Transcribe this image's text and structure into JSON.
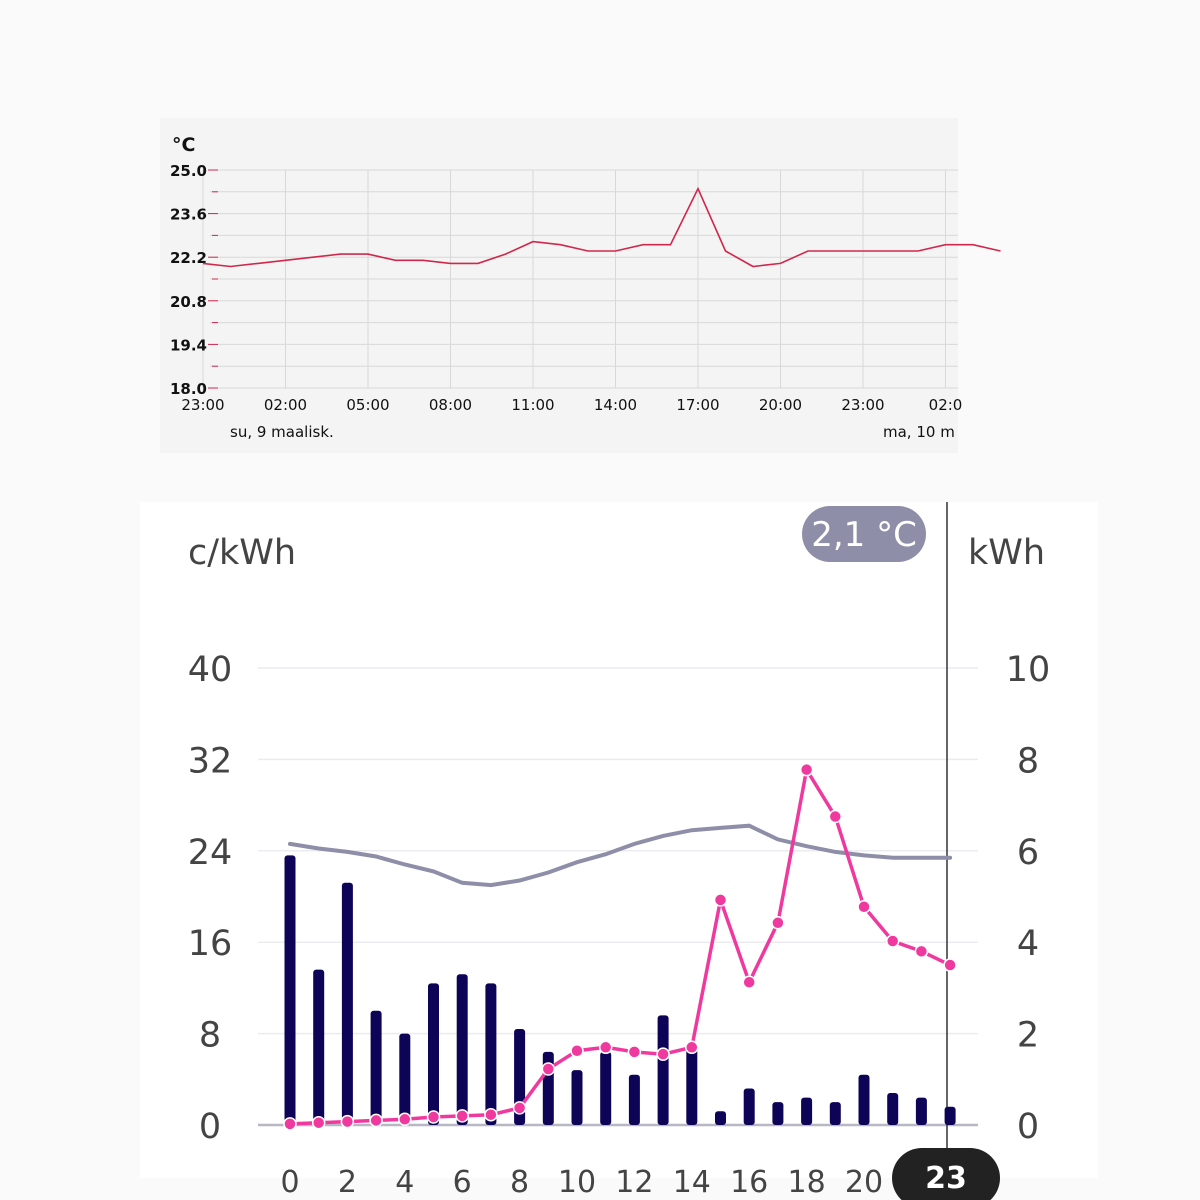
{
  "chart_data": [
    {
      "type": "line",
      "ylabel": "°C",
      "ylim": [
        18.0,
        25.0
      ],
      "yticks": [
        "25.0",
        "23.6",
        "22.2",
        "20.8",
        "19.4",
        "18.0"
      ],
      "xticks": [
        "23:00",
        "02:00",
        "05:00",
        "08:00",
        "11:00",
        "14:00",
        "17:00",
        "20:00",
        "23:00",
        "02:0"
      ],
      "date_labels": [
        "su, 9 maalisk.",
        "ma, 10 m"
      ],
      "grid": true,
      "color": "#d0284c",
      "series": [
        {
          "x": [
            0,
            1,
            2,
            3,
            4,
            5,
            6,
            7,
            8,
            9,
            10,
            11,
            12,
            13,
            14,
            15,
            16,
            17,
            18,
            19,
            20,
            21,
            22,
            23,
            24,
            25,
            26,
            27,
            28,
            29
          ],
          "values": [
            22.0,
            21.9,
            22.0,
            22.1,
            22.2,
            22.3,
            22.3,
            22.1,
            22.1,
            22.0,
            22.0,
            22.3,
            22.7,
            22.6,
            22.4,
            22.4,
            22.6,
            22.6,
            24.4,
            22.4,
            21.9,
            22.0,
            22.4,
            22.4,
            22.4,
            22.4,
            22.4,
            22.6,
            22.6,
            22.4
          ]
        }
      ]
    },
    {
      "type": "bar",
      "badge": "2,1 °C",
      "ylabel_left": "c/kWh",
      "ylabel_right": "kWh",
      "yticks_left": [
        "40",
        "32",
        "24",
        "16",
        "8",
        "0"
      ],
      "yticks_right": [
        "10",
        "8",
        "6",
        "4",
        "2",
        "0"
      ],
      "ylim_left": [
        0,
        40
      ],
      "ylim_right": [
        0,
        10
      ],
      "xticks": [
        "0",
        "2",
        "4",
        "6",
        "8",
        "10",
        "12",
        "14",
        "16",
        "18",
        "20"
      ],
      "selected_x": "23",
      "categories": [
        0,
        1,
        2,
        3,
        4,
        5,
        6,
        7,
        8,
        9,
        10,
        11,
        12,
        13,
        14,
        15,
        16,
        17,
        18,
        19,
        20,
        21,
        22,
        23
      ],
      "colors": {
        "bars": "#0d0457",
        "price": "#f0399f",
        "temperature": "#8e8ea8"
      },
      "series": [
        {
          "values": [
            5.9,
            3.4,
            5.3,
            2.5,
            2.0,
            3.1,
            3.3,
            3.1,
            2.1,
            1.6,
            1.2,
            1.6,
            1.1,
            2.4,
            1.7,
            0.3,
            0.8,
            0.5,
            0.6,
            0.5,
            1.1,
            0.7,
            0.6,
            0.4
          ]
        },
        {
          "values": [
            0.1,
            0.2,
            0.3,
            0.4,
            0.5,
            0.7,
            0.8,
            0.9,
            1.5,
            4.9,
            6.5,
            6.8,
            6.4,
            6.2,
            6.8,
            19.7,
            12.5,
            17.7,
            31.1,
            27.0,
            19.1,
            16.1,
            15.2,
            14.0
          ]
        },
        {
          "values": [
            24.6,
            24.2,
            23.9,
            23.5,
            22.8,
            22.2,
            21.2,
            21.0,
            21.4,
            22.1,
            23.0,
            23.7,
            24.6,
            25.3,
            25.8,
            26.0,
            26.2,
            25.0,
            24.4,
            23.9,
            23.6,
            23.4,
            23.4,
            23.4
          ]
        }
      ]
    }
  ]
}
